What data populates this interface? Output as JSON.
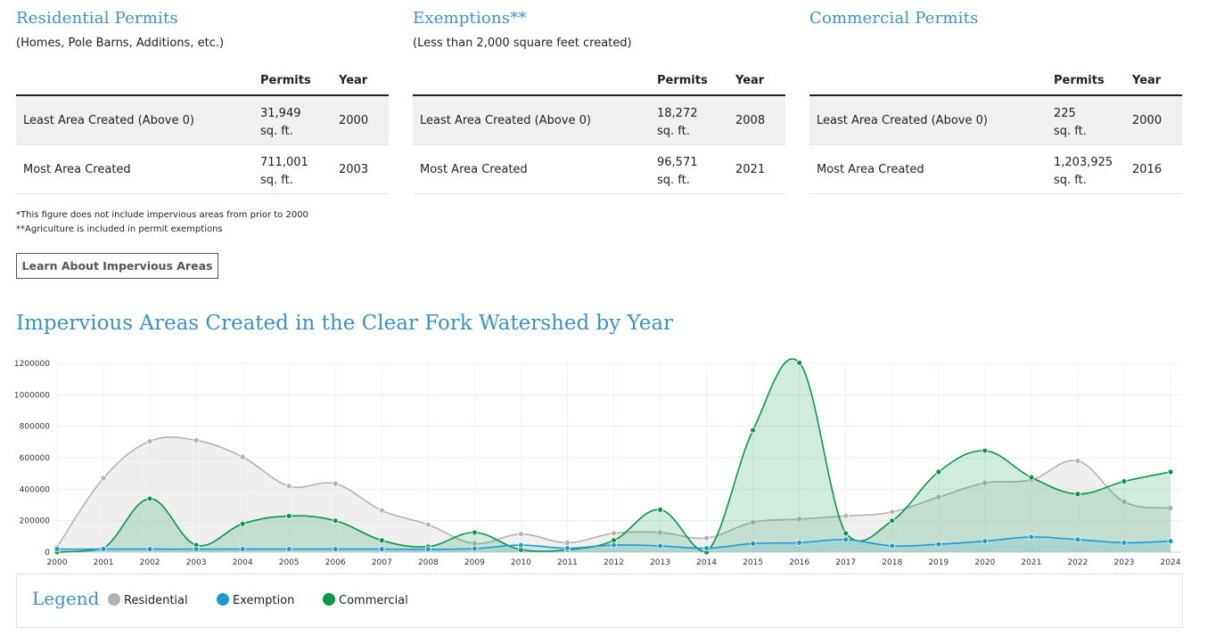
{
  "panels": [
    {
      "title": "Residential Permits",
      "subtitle": "(Homes, Pole Barns, Additions, etc.)",
      "header_permits": "Permits",
      "header_year": "Year",
      "rows": [
        {
          "label": "Least Area Created (Above 0)",
          "permits": "31,949",
          "unit": "sq. ft.",
          "year": "2000"
        },
        {
          "label": "Most Area Created",
          "permits": "711,001",
          "unit": "sq. ft.",
          "year": "2003"
        }
      ]
    },
    {
      "title": "Exemptions**",
      "subtitle": "(Less than 2,000 square feet created)",
      "header_permits": "Permits",
      "header_year": "Year",
      "rows": [
        {
          "label": "Least Area Created (Above 0)",
          "permits": "18,272",
          "unit": "sq. ft.",
          "year": "2008"
        },
        {
          "label": "Most Area Created",
          "permits": "96,571",
          "unit": "sq. ft.",
          "year": "2021"
        }
      ]
    },
    {
      "title": "Commercial Permits",
      "subtitle": "",
      "header_permits": "Permits",
      "header_year": "Year",
      "rows": [
        {
          "label": "Least Area Created (Above 0)",
          "permits": "225",
          "unit": "sq. ft.",
          "year": "2000"
        },
        {
          "label": "Most Area Created",
          "permits": "1,203,925",
          "unit": "sq. ft.",
          "year": "2016"
        }
      ]
    }
  ],
  "footnotes": [
    "*This figure does not include impervious areas from prior to 2000",
    "**Agriculture is included in permit exemptions"
  ],
  "learn_button_label": "Learn About Impervious Areas",
  "chart_title": "Impervious Areas Created in the Clear Fork Watershed by Year",
  "legend": {
    "title": "Legend",
    "items": [
      {
        "label": "Residential",
        "color": "#b3b3b3"
      },
      {
        "label": "Exemption",
        "color": "#1a9bd1"
      },
      {
        "label": "Commercial",
        "color": "#0a9747"
      }
    ]
  },
  "chart_data": {
    "type": "area",
    "x": [
      "2000",
      "2001",
      "2002",
      "2003",
      "2004",
      "2005",
      "2006",
      "2007",
      "2008",
      "2009",
      "2010",
      "2011",
      "2012",
      "2013",
      "2014",
      "2015",
      "2016",
      "2017",
      "2018",
      "2019",
      "2020",
      "2021",
      "2022",
      "2023",
      "2024"
    ],
    "y_ticks": [
      0,
      200000,
      400000,
      600000,
      800000,
      1000000,
      1200000
    ],
    "ylim": [
      0,
      1200000
    ],
    "grid": true,
    "legend_position": "bottom",
    "series": [
      {
        "name": "Residential",
        "color": "#b3b3b3",
        "fill": "rgba(220,220,220,0.45)",
        "values": [
          31949,
          470000,
          705000,
          711001,
          605000,
          420000,
          435000,
          265000,
          175000,
          55000,
          115000,
          60000,
          120000,
          125000,
          90000,
          190000,
          210000,
          230000,
          255000,
          350000,
          440000,
          460000,
          580000,
          320000,
          280000
        ]
      },
      {
        "name": "Exemption",
        "color": "#1a9bd1",
        "fill": "rgba(26,155,209,0.15)",
        "values": [
          19000,
          20000,
          19000,
          19000,
          19000,
          19000,
          19000,
          19000,
          18272,
          22000,
          45000,
          25000,
          45000,
          40000,
          25000,
          55000,
          60000,
          80000,
          40000,
          50000,
          70000,
          96571,
          80000,
          60000,
          70000
        ]
      },
      {
        "name": "Commercial",
        "color": "#0a9747",
        "fill": "rgba(22,160,90,0.2)",
        "values": [
          225,
          25000,
          340000,
          45000,
          180000,
          230000,
          200000,
          75000,
          35000,
          125000,
          15000,
          15000,
          75000,
          270000,
          0,
          775000,
          1203925,
          120000,
          200000,
          510000,
          645000,
          475000,
          370000,
          450000,
          510000
        ]
      }
    ]
  }
}
